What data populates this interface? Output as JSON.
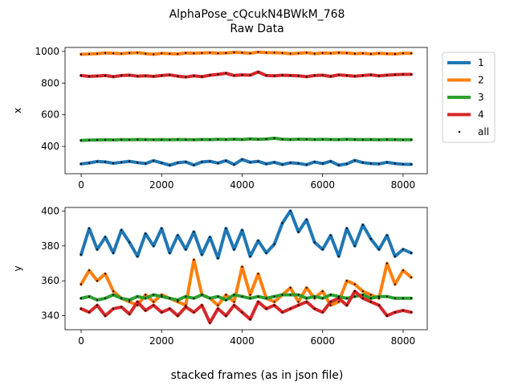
{
  "chart_data": {
    "type": "line",
    "title": [
      "AlphaPose_cQcukN4BWkM_768",
      "Raw Data"
    ],
    "xlabel": "stacked frames (as in json file)",
    "legend": {
      "placement": "outside-right-top",
      "entries": [
        {
          "label": "1",
          "color": "#1f77b4",
          "kind": "line"
        },
        {
          "label": "2",
          "color": "#ff7f0e",
          "kind": "line"
        },
        {
          "label": "3",
          "color": "#2ca02c",
          "kind": "line"
        },
        {
          "label": "4",
          "color": "#d62728",
          "kind": "line"
        },
        {
          "label": "all",
          "color": "#000000",
          "kind": "dot"
        }
      ]
    },
    "panels": [
      {
        "ylabel": "x",
        "xlim": [
          -400,
          8600
        ],
        "ylim": [
          228,
          1025
        ],
        "xticks": [
          0,
          2000,
          4000,
          6000,
          8000
        ],
        "yticks": [
          400,
          600,
          800,
          1000
        ],
        "x": [
          0,
          200,
          400,
          600,
          800,
          1000,
          1200,
          1400,
          1600,
          1800,
          2000,
          2200,
          2400,
          2600,
          2800,
          3000,
          3200,
          3400,
          3600,
          3800,
          4000,
          4200,
          4400,
          4600,
          4800,
          5000,
          5200,
          5400,
          5600,
          5800,
          6000,
          6200,
          6400,
          6600,
          6800,
          7000,
          7200,
          7400,
          7600,
          7800,
          8000,
          8200
        ],
        "series": [
          {
            "name": "1",
            "color": "#1f77b4",
            "values": [
              290,
              296,
              305,
              302,
              294,
              300,
              306,
              298,
              292,
              310,
              296,
              282,
              297,
              302,
              283,
              302,
              306,
              295,
              310,
              286,
              318,
              300,
              306,
              290,
              300,
              286,
              297,
              293,
              285,
              302,
              292,
              306,
              282,
              290,
              312,
              298,
              292,
              290,
              300,
              292,
              288,
              287
            ]
          },
          {
            "name": "2",
            "color": "#ff7f0e",
            "values": [
              982,
              984,
              986,
              990,
              988,
              986,
              990,
              992,
              986,
              982,
              988,
              986,
              984,
              990,
              988,
              990,
              992,
              988,
              990,
              994,
              992,
              988,
              996,
              992,
              992,
              990,
              986,
              988,
              992,
              986,
              990,
              988,
              992,
              990,
              986,
              988,
              984,
              988,
              986,
              984,
              988,
              988
            ]
          },
          {
            "name": "3",
            "color": "#2ca02c",
            "values": [
              438,
              440,
              441,
              442,
              441,
              443,
              442,
              444,
              443,
              442,
              443,
              442,
              444,
              443,
              442,
              444,
              443,
              445,
              444,
              446,
              444,
              448,
              445,
              447,
              452,
              446,
              444,
              446,
              445,
              444,
              445,
              444,
              443,
              445,
              444,
              443,
              444,
              442,
              444,
              443,
              442,
              442
            ]
          },
          {
            "name": "4",
            "color": "#d62728",
            "values": [
              848,
              842,
              845,
              848,
              840,
              848,
              850,
              844,
              846,
              842,
              848,
              852,
              844,
              838,
              846,
              840,
              850,
              855,
              862,
              848,
              852,
              850,
              870,
              848,
              846,
              850,
              848,
              846,
              840,
              848,
              850,
              842,
              852,
              848,
              844,
              848,
              852,
              846,
              850,
              853,
              855,
              855
            ]
          }
        ]
      },
      {
        "ylabel": "y",
        "xlim": [
          -400,
          8600
        ],
        "ylim": [
          332,
          402
        ],
        "xticks": [
          0,
          2000,
          4000,
          6000,
          8000
        ],
        "yticks": [
          340,
          360,
          380,
          400
        ],
        "x": [
          0,
          200,
          400,
          600,
          800,
          1000,
          1200,
          1400,
          1600,
          1800,
          2000,
          2200,
          2400,
          2600,
          2800,
          3000,
          3200,
          3400,
          3600,
          3800,
          4000,
          4200,
          4400,
          4600,
          4800,
          5000,
          5200,
          5400,
          5600,
          5800,
          6000,
          6200,
          6400,
          6600,
          6800,
          7000,
          7200,
          7400,
          7600,
          7800,
          8000,
          8200
        ],
        "series": [
          {
            "name": "1",
            "color": "#1f77b4",
            "values": [
              375,
              390,
              378,
              385,
              376,
              389,
              382,
              374,
              387,
              380,
              390,
              376,
              386,
              378,
              388,
              375,
              385,
              373,
              390,
              378,
              389,
              374,
              383,
              376,
              381,
              393,
              400,
              388,
              395,
              382,
              378,
              386,
              374,
              390,
              380,
              392,
              384,
              378,
              386,
              374,
              378,
              376
            ]
          },
          {
            "name": "2",
            "color": "#ff7f0e",
            "values": [
              358,
              366,
              360,
              364,
              354,
              350,
              348,
              346,
              352,
              348,
              352,
              350,
              348,
              346,
              372,
              352,
              350,
              346,
              352,
              348,
              368,
              352,
              364,
              350,
              348,
              352,
              356,
              348,
              356,
              350,
              354,
              346,
              348,
              360,
              358,
              354,
              352,
              350,
              370,
              358,
              366,
              362
            ]
          },
          {
            "name": "3",
            "color": "#2ca02c",
            "values": [
              350,
              351,
              349,
              350,
              352,
              350,
              349,
              351,
              350,
              352,
              351,
              350,
              349,
              351,
              350,
              352,
              350,
              351,
              349,
              352,
              351,
              350,
              351,
              350,
              351,
              352,
              352,
              352,
              350,
              351,
              350,
              352,
              351,
              350,
              351,
              352,
              350,
              351,
              351,
              350,
              350,
              350
            ]
          },
          {
            "name": "4",
            "color": "#d62728",
            "values": [
              344,
              342,
              346,
              340,
              344,
              345,
              341,
              348,
              343,
              346,
              342,
              344,
              340,
              345,
              342,
              346,
              336,
              344,
              340,
              346,
              342,
              338,
              348,
              344,
              346,
              342,
              344,
              346,
              348,
              344,
              342,
              348,
              350,
              346,
              354,
              350,
              348,
              346,
              340,
              342,
              343,
              342
            ]
          }
        ]
      }
    ]
  }
}
